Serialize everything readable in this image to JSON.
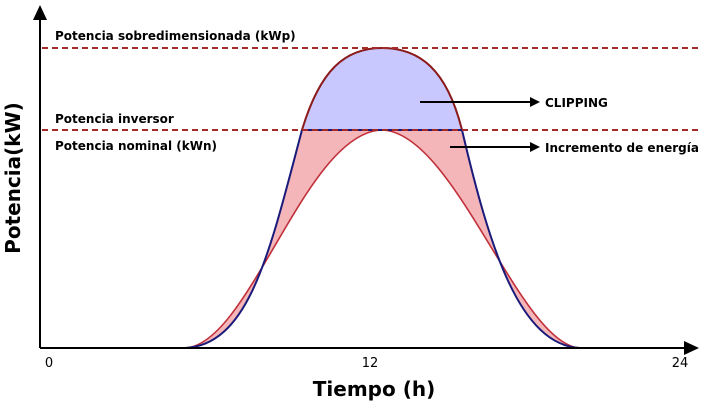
{
  "labels": {
    "oversized_power": "Potencia sobredimensionada (kWp)",
    "inverter_power": "Potencia inversor",
    "nominal_power": "Potencia nominal (kWn)",
    "clipping": "CLIPPING",
    "energy_increase": "Incremento de energía"
  },
  "axes": {
    "x_title": "Tiempo (h)",
    "y_title": "Potencia(kW)",
    "x_ticks": [
      "0",
      "12",
      "24"
    ]
  },
  "colors": {
    "dashed_line": "#a52a2a",
    "clipping_fill": "#c8c8ff",
    "clipping_stroke": "#8b1a1a",
    "increment_fill": "#f4b6b8",
    "upper_curve": "#1a1a7a",
    "nominal_curve": "#c0303a"
  }
}
